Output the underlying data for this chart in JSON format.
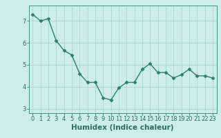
{
  "x": [
    0,
    1,
    2,
    3,
    4,
    5,
    6,
    7,
    8,
    9,
    10,
    11,
    12,
    13,
    14,
    15,
    16,
    17,
    18,
    19,
    20,
    21,
    22,
    23
  ],
  "y": [
    7.3,
    7.0,
    7.1,
    6.1,
    5.65,
    5.45,
    4.6,
    4.2,
    4.2,
    3.5,
    3.4,
    3.95,
    4.2,
    4.2,
    4.8,
    5.05,
    4.65,
    4.65,
    4.4,
    4.55,
    4.8,
    4.5,
    4.5,
    4.4
  ],
  "line_color": "#2e7d6e",
  "marker": "D",
  "marker_size": 2.5,
  "line_width": 1.0,
  "bg_color": "#cceee8",
  "grid_color": "#b0d8d2",
  "xlabel": "Humidex (Indice chaleur)",
  "xlabel_fontsize": 7.5,
  "ylim": [
    2.8,
    7.7
  ],
  "xlim": [
    -0.5,
    23.5
  ],
  "yticks": [
    3,
    4,
    5,
    6,
    7
  ],
  "xticks": [
    0,
    1,
    2,
    3,
    4,
    5,
    6,
    7,
    8,
    9,
    10,
    11,
    12,
    13,
    14,
    15,
    16,
    17,
    18,
    19,
    20,
    21,
    22,
    23
  ],
  "tick_color": "#2e6b5e",
  "tick_fontsize": 6,
  "spine_color": "#4a9080"
}
